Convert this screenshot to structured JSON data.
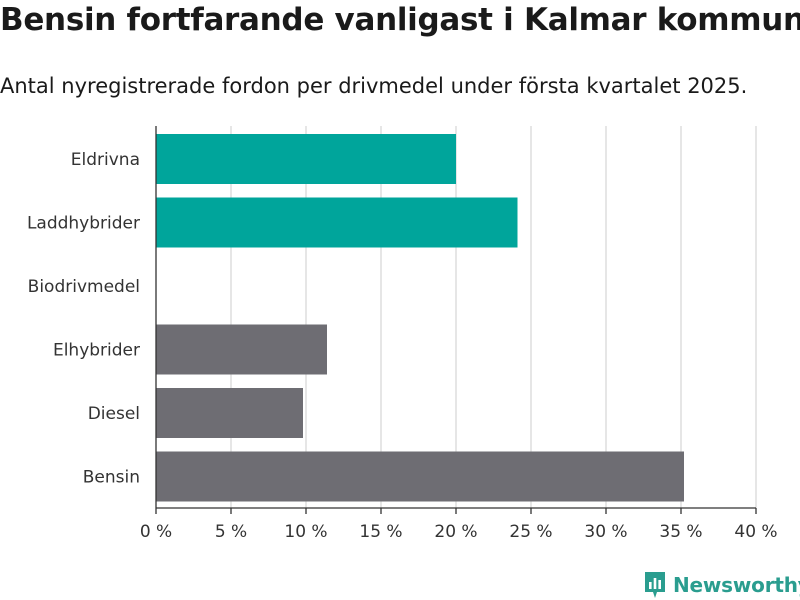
{
  "title": "Bensin fortfarande vanligast i Kalmar kommun",
  "subtitle": "Antal nyregistrerade fordon per drivmedel under första kvartalet 2025.",
  "brand": "Newsworthy",
  "colors": {
    "highlight": "#00a59b",
    "default": "#6e6d73",
    "grid": "#d9d9d9",
    "axis": "#333333",
    "brand": "#2a9d8f"
  },
  "chart_data": {
    "type": "bar",
    "orientation": "horizontal",
    "categories": [
      "Eldrivna",
      "Laddhybrider",
      "Biodrivmedel",
      "Elhybrider",
      "Diesel",
      "Bensin"
    ],
    "values": [
      20.0,
      24.1,
      0,
      11.4,
      9.8,
      35.2
    ],
    "highlighted": [
      true,
      true,
      false,
      false,
      false,
      false
    ],
    "xlim": [
      0,
      40
    ],
    "xticks": [
      0,
      5,
      10,
      15,
      20,
      25,
      30,
      35,
      40
    ],
    "xtick_labels": [
      "0 %",
      "5 %",
      "10 %",
      "15 %",
      "20 %",
      "25 %",
      "30 %",
      "35 %",
      "40 %"
    ],
    "grid": true,
    "legend": "none"
  }
}
